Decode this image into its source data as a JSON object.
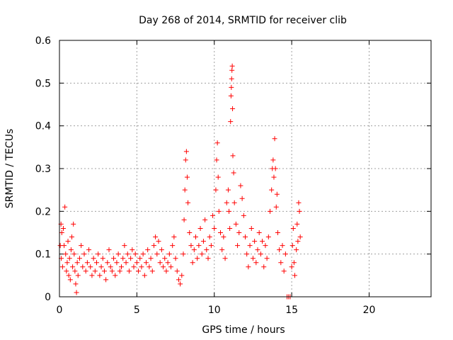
{
  "chart_data": {
    "type": "scatter",
    "title": "Day 268 of 2014, SRMTID for receiver clib",
    "xlabel": "GPS time / hours",
    "ylabel": "SRMTID / TECUs",
    "xlim": [
      0,
      24
    ],
    "ylim": [
      0,
      0.6
    ],
    "xticks": [
      0,
      5,
      10,
      15,
      20
    ],
    "yticks": [
      0,
      0.1,
      0.2,
      0.3,
      0.4,
      0.5,
      0.6
    ],
    "xtick_labels": [
      "0",
      "5",
      "10",
      "15",
      "20"
    ],
    "ytick_labels": [
      "0",
      "0.1",
      "0.2",
      "0.3",
      "0.4",
      "0.5",
      "0.6"
    ],
    "grid": true,
    "marker": "plus",
    "color": "#ff0000",
    "series": [
      {
        "name": "SRMTID",
        "points": [
          [
            0.05,
            0.12
          ],
          [
            0.1,
            0.17
          ],
          [
            0.12,
            0.09
          ],
          [
            0.15,
            0.15
          ],
          [
            0.2,
            0.07
          ],
          [
            0.25,
            0.16
          ],
          [
            0.3,
            0.12
          ],
          [
            0.35,
            0.21
          ],
          [
            0.4,
            0.1
          ],
          [
            0.45,
            0.06
          ],
          [
            0.5,
            0.08
          ],
          [
            0.55,
            0.13
          ],
          [
            0.6,
            0.05
          ],
          [
            0.65,
            0.09
          ],
          [
            0.7,
            0.04
          ],
          [
            0.75,
            0.11
          ],
          [
            0.8,
            0.14
          ],
          [
            0.85,
            0.07
          ],
          [
            0.9,
            0.17
          ],
          [
            0.95,
            0.1
          ],
          [
            1.0,
            0.06
          ],
          [
            1.05,
            0.03
          ],
          [
            1.1,
            0.01
          ],
          [
            1.15,
            0.08
          ],
          [
            1.2,
            0.05
          ],
          [
            1.3,
            0.09
          ],
          [
            1.4,
            0.12
          ],
          [
            1.5,
            0.07
          ],
          [
            1.6,
            0.1
          ],
          [
            1.7,
            0.06
          ],
          [
            1.8,
            0.08
          ],
          [
            1.9,
            0.11
          ],
          [
            2.0,
            0.07
          ],
          [
            2.1,
            0.05
          ],
          [
            2.2,
            0.09
          ],
          [
            2.3,
            0.06
          ],
          [
            2.4,
            0.08
          ],
          [
            2.5,
            0.1
          ],
          [
            2.6,
            0.05
          ],
          [
            2.7,
            0.07
          ],
          [
            2.8,
            0.09
          ],
          [
            2.9,
            0.06
          ],
          [
            3.0,
            0.04
          ],
          [
            3.1,
            0.08
          ],
          [
            3.2,
            0.11
          ],
          [
            3.3,
            0.07
          ],
          [
            3.4,
            0.06
          ],
          [
            3.5,
            0.09
          ],
          [
            3.6,
            0.05
          ],
          [
            3.7,
            0.08
          ],
          [
            3.8,
            0.1
          ],
          [
            3.9,
            0.06
          ],
          [
            4.0,
            0.07
          ],
          [
            4.1,
            0.09
          ],
          [
            4.2,
            0.12
          ],
          [
            4.3,
            0.08
          ],
          [
            4.4,
            0.1
          ],
          [
            4.5,
            0.06
          ],
          [
            4.6,
            0.09
          ],
          [
            4.7,
            0.11
          ],
          [
            4.8,
            0.07
          ],
          [
            4.9,
            0.1
          ],
          [
            5.0,
            0.08
          ],
          [
            5.1,
            0.06
          ],
          [
            5.2,
            0.09
          ],
          [
            5.3,
            0.07
          ],
          [
            5.4,
            0.1
          ],
          [
            5.5,
            0.05
          ],
          [
            5.6,
            0.08
          ],
          [
            5.7,
            0.11
          ],
          [
            5.8,
            0.07
          ],
          [
            5.9,
            0.09
          ],
          [
            6.0,
            0.06
          ],
          [
            6.1,
            0.12
          ],
          [
            6.2,
            0.14
          ],
          [
            6.3,
            0.1
          ],
          [
            6.4,
            0.13
          ],
          [
            6.5,
            0.08
          ],
          [
            6.6,
            0.11
          ],
          [
            6.7,
            0.07
          ],
          [
            6.8,
            0.09
          ],
          [
            6.9,
            0.06
          ],
          [
            7.0,
            0.08
          ],
          [
            7.1,
            0.1
          ],
          [
            7.2,
            0.07
          ],
          [
            7.3,
            0.12
          ],
          [
            7.4,
            0.14
          ],
          [
            7.5,
            0.09
          ],
          [
            7.6,
            0.06
          ],
          [
            7.7,
            0.04
          ],
          [
            7.8,
            0.03
          ],
          [
            7.9,
            0.05
          ],
          [
            8.0,
            0.1
          ],
          [
            8.05,
            0.18
          ],
          [
            8.1,
            0.25
          ],
          [
            8.15,
            0.32
          ],
          [
            8.2,
            0.34
          ],
          [
            8.25,
            0.28
          ],
          [
            8.3,
            0.22
          ],
          [
            8.4,
            0.15
          ],
          [
            8.5,
            0.12
          ],
          [
            8.6,
            0.08
          ],
          [
            8.7,
            0.11
          ],
          [
            8.8,
            0.14
          ],
          [
            8.9,
            0.09
          ],
          [
            9.0,
            0.12
          ],
          [
            9.1,
            0.16
          ],
          [
            9.2,
            0.1
          ],
          [
            9.3,
            0.13
          ],
          [
            9.4,
            0.18
          ],
          [
            9.5,
            0.11
          ],
          [
            9.6,
            0.09
          ],
          [
            9.7,
            0.14
          ],
          [
            9.8,
            0.12
          ],
          [
            9.9,
            0.19
          ],
          [
            10.0,
            0.16
          ],
          [
            10.1,
            0.25
          ],
          [
            10.15,
            0.32
          ],
          [
            10.2,
            0.36
          ],
          [
            10.25,
            0.28
          ],
          [
            10.3,
            0.2
          ],
          [
            10.4,
            0.15
          ],
          [
            10.5,
            0.11
          ],
          [
            10.6,
            0.14
          ],
          [
            10.7,
            0.09
          ],
          [
            10.8,
            0.22
          ],
          [
            10.9,
            0.25
          ],
          [
            10.95,
            0.2
          ],
          [
            11.0,
            0.16
          ],
          [
            11.05,
            0.41
          ],
          [
            11.08,
            0.47
          ],
          [
            11.1,
            0.49
          ],
          [
            11.12,
            0.51
          ],
          [
            11.14,
            0.53
          ],
          [
            11.16,
            0.54
          ],
          [
            11.18,
            0.44
          ],
          [
            11.2,
            0.33
          ],
          [
            11.25,
            0.29
          ],
          [
            11.3,
            0.22
          ],
          [
            11.4,
            0.17
          ],
          [
            11.5,
            0.12
          ],
          [
            11.6,
            0.15
          ],
          [
            11.7,
            0.26
          ],
          [
            11.8,
            0.23
          ],
          [
            11.9,
            0.19
          ],
          [
            12.0,
            0.14
          ],
          [
            12.1,
            0.1
          ],
          [
            12.2,
            0.07
          ],
          [
            12.3,
            0.12
          ],
          [
            12.4,
            0.16
          ],
          [
            12.5,
            0.09
          ],
          [
            12.6,
            0.13
          ],
          [
            12.7,
            0.08
          ],
          [
            12.8,
            0.11
          ],
          [
            12.9,
            0.15
          ],
          [
            13.0,
            0.1
          ],
          [
            13.1,
            0.13
          ],
          [
            13.2,
            0.07
          ],
          [
            13.3,
            0.12
          ],
          [
            13.4,
            0.09
          ],
          [
            13.5,
            0.14
          ],
          [
            13.6,
            0.2
          ],
          [
            13.7,
            0.25
          ],
          [
            13.75,
            0.3
          ],
          [
            13.8,
            0.32
          ],
          [
            13.85,
            0.28
          ],
          [
            13.9,
            0.37
          ],
          [
            13.95,
            0.3
          ],
          [
            14.0,
            0.21
          ],
          [
            14.05,
            0.24
          ],
          [
            14.1,
            0.15
          ],
          [
            14.2,
            0.11
          ],
          [
            14.3,
            0.08
          ],
          [
            14.4,
            0.12
          ],
          [
            14.5,
            0.06
          ],
          [
            14.6,
            0.1
          ],
          [
            14.7,
            0.0
          ],
          [
            14.8,
            0.0
          ],
          [
            14.9,
            0.0
          ],
          [
            15.0,
            0.07
          ],
          [
            15.05,
            0.12
          ],
          [
            15.1,
            0.16
          ],
          [
            15.15,
            0.08
          ],
          [
            15.2,
            0.05
          ],
          [
            15.3,
            0.11
          ],
          [
            15.35,
            0.17
          ],
          [
            15.4,
            0.13
          ],
          [
            15.45,
            0.22
          ],
          [
            15.5,
            0.2
          ],
          [
            15.55,
            0.14
          ]
        ]
      }
    ]
  }
}
